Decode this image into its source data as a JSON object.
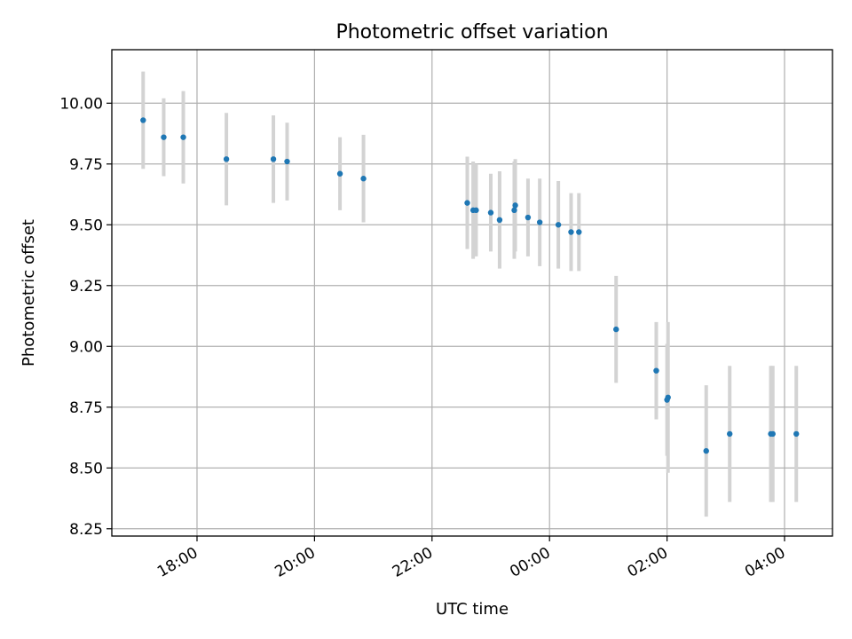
{
  "chart_data": {
    "type": "scatter",
    "title": "Photometric offset variation",
    "xlabel": "UTC time",
    "ylabel": "Photometric offset",
    "x_unit": "time of day (UTC), run spans midnight",
    "xlim": [
      "16:33",
      "04:51"
    ],
    "ylim": [
      8.22,
      10.22
    ],
    "x_ticks": [
      "18:00",
      "20:00",
      "22:00",
      "00:00",
      "02:00",
      "04:00"
    ],
    "y_ticks": [
      "8.25",
      "8.50",
      "8.75",
      "9.00",
      "9.25",
      "9.50",
      "9.75",
      "10.00"
    ],
    "grid": true,
    "legend": "none",
    "colors": {
      "points": "#1f77b4",
      "errorbars": "#d3d3d3"
    },
    "series": [
      {
        "points": [
          {
            "x": "17:05",
            "y": 9.93,
            "err": 0.2
          },
          {
            "x": "17:26",
            "y": 9.86,
            "err": 0.16
          },
          {
            "x": "17:46",
            "y": 9.86,
            "err": 0.19
          },
          {
            "x": "18:30",
            "y": 9.77,
            "err": 0.19
          },
          {
            "x": "19:18",
            "y": 9.77,
            "err": 0.18
          },
          {
            "x": "19:32",
            "y": 9.76,
            "err": 0.16
          },
          {
            "x": "20:26",
            "y": 9.71,
            "err": 0.15
          },
          {
            "x": "20:50",
            "y": 9.69,
            "err": 0.18
          },
          {
            "x": "22:36",
            "y": 9.59,
            "err": 0.19
          },
          {
            "x": "22:42",
            "y": 9.56,
            "err": 0.2
          },
          {
            "x": "22:45",
            "y": 9.56,
            "err": 0.19
          },
          {
            "x": "23:00",
            "y": 9.55,
            "err": 0.16
          },
          {
            "x": "23:09",
            "y": 9.52,
            "err": 0.2
          },
          {
            "x": "23:24",
            "y": 9.56,
            "err": 0.2
          },
          {
            "x": "23:25",
            "y": 9.58,
            "err": 0.19
          },
          {
            "x": "23:38",
            "y": 9.53,
            "err": 0.16
          },
          {
            "x": "23:50",
            "y": 9.51,
            "err": 0.18
          },
          {
            "x": "00:09",
            "y": 9.5,
            "err": 0.18
          },
          {
            "x": "00:22",
            "y": 9.47,
            "err": 0.16
          },
          {
            "x": "00:30",
            "y": 9.47,
            "err": 0.16
          },
          {
            "x": "01:08",
            "y": 9.07,
            "err": 0.22
          },
          {
            "x": "01:49",
            "y": 8.9,
            "err": 0.2
          },
          {
            "x": "02:00",
            "y": 8.78,
            "err": 0.23
          },
          {
            "x": "02:01",
            "y": 8.79,
            "err": 0.31
          },
          {
            "x": "02:40",
            "y": 8.57,
            "err": 0.27
          },
          {
            "x": "03:04",
            "y": 8.64,
            "err": 0.28
          },
          {
            "x": "03:46",
            "y": 8.64,
            "err": 0.28
          },
          {
            "x": "03:48",
            "y": 8.64,
            "err": 0.28
          },
          {
            "x": "04:12",
            "y": 8.64,
            "err": 0.28
          }
        ]
      }
    ]
  }
}
